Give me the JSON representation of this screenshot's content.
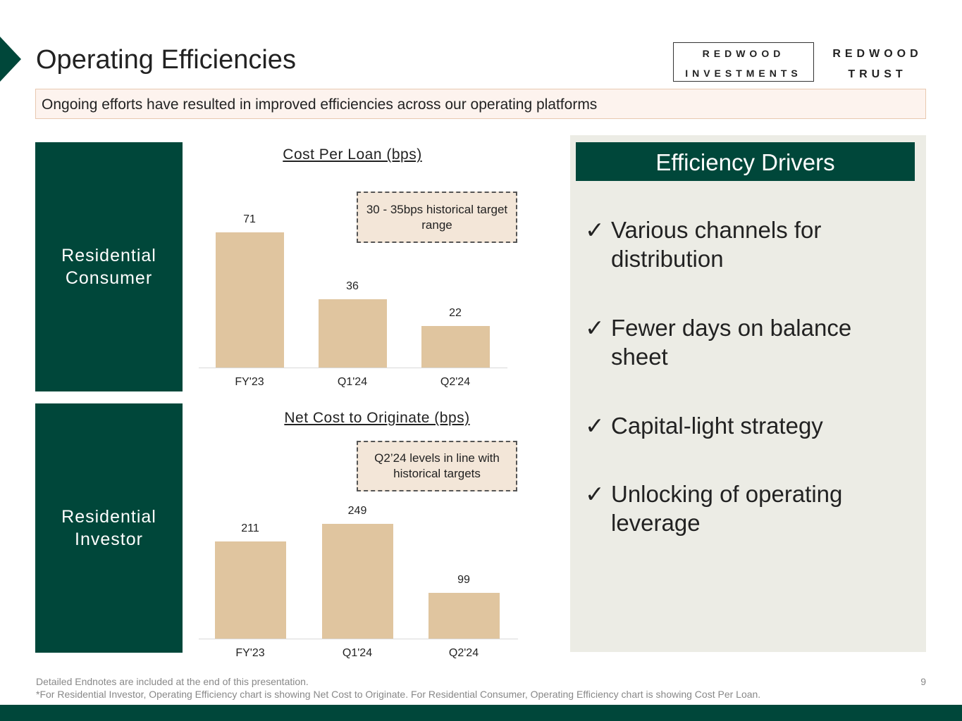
{
  "header": {
    "title": "Operating Efficiencies",
    "logo_investments": [
      "REDWOOD",
      "INVESTMENTS"
    ],
    "logo_trust": [
      "REDWOOD",
      "TRUST"
    ]
  },
  "banner": "Ongoing efforts have resulted in improved efficiencies across our operating platforms",
  "segments": [
    "Residential Consumer",
    "Residential Investor"
  ],
  "chart_data": [
    {
      "type": "bar",
      "title": "Cost Per Loan (bps)",
      "categories": [
        "FY'23",
        "Q1'24",
        "Q2'24"
      ],
      "values": [
        71,
        36,
        22
      ],
      "annotation": "30 - 35bps historical target range",
      "color": "#e0c59f"
    },
    {
      "type": "bar",
      "title": "Net Cost to Originate (bps)",
      "categories": [
        "FY'23",
        "Q1'24",
        "Q2'24"
      ],
      "values": [
        211,
        249,
        99
      ],
      "annotation": "Q2’24 levels in line with historical targets",
      "color": "#e0c59f"
    }
  ],
  "drivers": {
    "title": "Efficiency Drivers",
    "check": "✓",
    "items": [
      "Various channels for distribution",
      "Fewer days on balance sheet",
      "Capital-light strategy",
      "Unlocking of operating leverage"
    ]
  },
  "footer": {
    "endnote": "Detailed Endnotes are included at the end of this presentation.",
    "note": "*For Residential Investor, Operating Efficiency chart is showing Net Cost to Originate. For Residential Consumer, Operating Efficiency chart is showing Cost Per Loan.",
    "page": "9"
  },
  "colors": {
    "brand": "#00473a",
    "bar": "#e0c59f"
  }
}
